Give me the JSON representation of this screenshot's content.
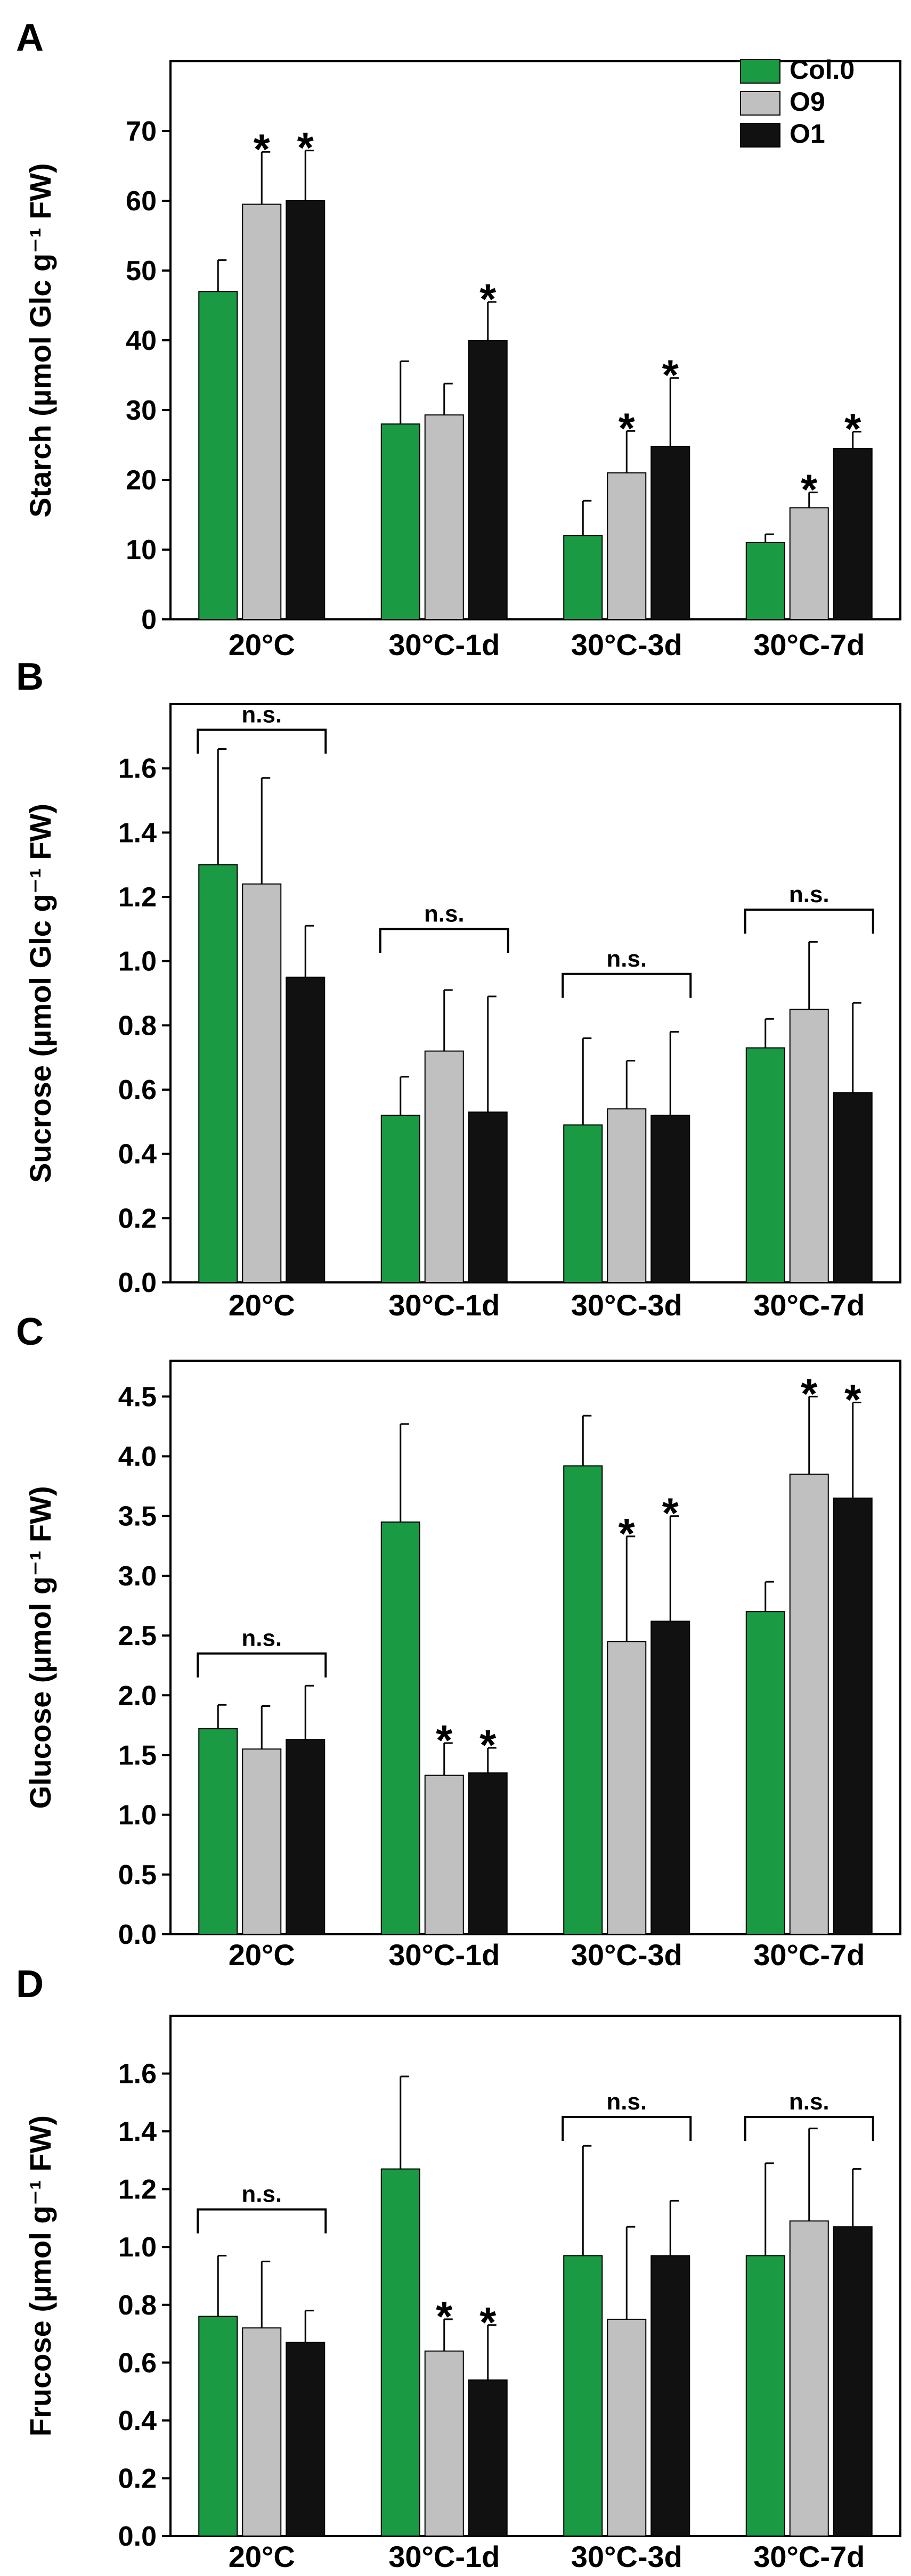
{
  "colors": {
    "Col.0": "#1a9a43",
    "O9": "#c0c0c0",
    "O1": "#111111"
  },
  "legend": [
    "Col.0",
    "O9",
    "O1"
  ],
  "chart_data": [
    {
      "type": "bar",
      "panel": "A",
      "ylabel": "Starch (µmol Glc g⁻¹ FW)",
      "categories": [
        "20°C",
        "30°C-1d",
        "30°C-3d",
        "30°C-7d"
      ],
      "ylim": [
        0,
        80
      ],
      "yticks": [
        0,
        10,
        20,
        30,
        40,
        50,
        60,
        70
      ],
      "yticklabels": [
        "0",
        "10",
        "20",
        "30",
        "40",
        "50",
        "60",
        "70"
      ],
      "series": [
        {
          "name": "Col.0",
          "values": [
            47,
            28,
            12,
            11
          ],
          "errors": [
            4.5,
            9,
            5,
            1.2
          ],
          "stars": [
            false,
            false,
            false,
            false
          ]
        },
        {
          "name": "O9",
          "values": [
            59.5,
            29.3,
            21,
            16
          ],
          "errors": [
            7.5,
            4.5,
            6,
            2.2
          ],
          "stars": [
            true,
            false,
            true,
            true
          ]
        },
        {
          "name": "O1",
          "values": [
            60,
            40,
            24.8,
            24.5
          ],
          "errors": [
            7.2,
            5.5,
            9.8,
            2.4
          ],
          "stars": [
            true,
            true,
            true,
            true
          ]
        }
      ],
      "ns_groups": [],
      "show_legend": true,
      "legend_position": "top-right"
    },
    {
      "type": "bar",
      "panel": "B",
      "ylabel": "Sucrose (µmol Glc g⁻¹ FW)",
      "categories": [
        "20°C",
        "30°C-1d",
        "30°C-3d",
        "30°C-7d"
      ],
      "ylim": [
        0,
        1.8
      ],
      "yticks": [
        0,
        0.2,
        0.4,
        0.6,
        0.8,
        1.0,
        1.2,
        1.4,
        1.6
      ],
      "yticklabels": [
        "0.0",
        "0.2",
        "0.4",
        "0.6",
        "0.8",
        "1.0",
        "1.2",
        "1.4",
        "1.6"
      ],
      "series": [
        {
          "name": "Col.0",
          "values": [
            1.3,
            0.52,
            0.49,
            0.73
          ],
          "errors": [
            0.36,
            0.12,
            0.27,
            0.09
          ],
          "stars": [
            false,
            false,
            false,
            false
          ]
        },
        {
          "name": "O9",
          "values": [
            1.24,
            0.72,
            0.54,
            0.85
          ],
          "errors": [
            0.33,
            0.19,
            0.15,
            0.21
          ],
          "stars": [
            false,
            false,
            false,
            false
          ]
        },
        {
          "name": "O1",
          "values": [
            0.95,
            0.53,
            0.52,
            0.59
          ],
          "errors": [
            0.16,
            0.36,
            0.26,
            0.28
          ],
          "stars": [
            false,
            false,
            false,
            false
          ]
        }
      ],
      "ns_groups": [
        0,
        1,
        2,
        3
      ],
      "ns_heights": [
        1.72,
        1.1,
        0.96,
        1.16
      ],
      "ns_label": "n.s.",
      "show_legend": false
    },
    {
      "type": "bar",
      "panel": "C",
      "ylabel": "Glucose (µmol g⁻¹ FW)",
      "categories": [
        "20°C",
        "30°C-1d",
        "30°C-3d",
        "30°C-7d"
      ],
      "ylim": [
        0,
        4.8
      ],
      "yticks": [
        0,
        0.5,
        1.0,
        1.5,
        2.0,
        2.5,
        3.0,
        3.5,
        4.0,
        4.5
      ],
      "yticklabels": [
        "0.0",
        "0.5",
        "1.0",
        "1.5",
        "2.0",
        "2.5",
        "3.0",
        "3.5",
        "4.0",
        "4.5"
      ],
      "series": [
        {
          "name": "Col.0",
          "values": [
            1.72,
            3.45,
            3.92,
            2.7
          ],
          "errors": [
            0.2,
            0.82,
            0.42,
            0.25
          ],
          "stars": [
            false,
            false,
            false,
            false
          ]
        },
        {
          "name": "O9",
          "values": [
            1.55,
            1.33,
            2.45,
            3.85
          ],
          "errors": [
            0.36,
            0.27,
            0.88,
            0.65
          ],
          "stars": [
            false,
            true,
            true,
            true
          ]
        },
        {
          "name": "O1",
          "values": [
            1.63,
            1.35,
            2.62,
            3.65
          ],
          "errors": [
            0.45,
            0.21,
            0.88,
            0.8
          ],
          "stars": [
            false,
            true,
            true,
            true
          ]
        }
      ],
      "ns_groups": [
        0
      ],
      "ns_heights": [
        2.35
      ],
      "ns_label": "n.s.",
      "show_legend": false
    },
    {
      "type": "bar",
      "panel": "D",
      "ylabel": "Frucose (µmol g⁻¹ FW)",
      "categories": [
        "20°C",
        "30°C-1d",
        "30°C-3d",
        "30°C-7d"
      ],
      "ylim": [
        0,
        1.8
      ],
      "yticks": [
        0,
        0.2,
        0.4,
        0.6,
        0.8,
        1.0,
        1.2,
        1.4,
        1.6
      ],
      "yticklabels": [
        "0.0",
        "0.2",
        "0.4",
        "0.6",
        "0.8",
        "1.0",
        "1.2",
        "1.4",
        "1.6"
      ],
      "series": [
        {
          "name": "Col.0",
          "values": [
            0.76,
            1.27,
            0.97,
            0.97
          ],
          "errors": [
            0.21,
            0.32,
            0.38,
            0.32
          ],
          "stars": [
            false,
            false,
            false,
            false
          ]
        },
        {
          "name": "O9",
          "values": [
            0.72,
            0.64,
            0.75,
            1.09
          ],
          "errors": [
            0.23,
            0.11,
            0.32,
            0.32
          ],
          "stars": [
            false,
            true,
            false,
            false
          ]
        },
        {
          "name": "O1",
          "values": [
            0.67,
            0.54,
            0.97,
            1.07
          ],
          "errors": [
            0.11,
            0.19,
            0.19,
            0.2
          ],
          "stars": [
            false,
            true,
            false,
            false
          ]
        }
      ],
      "ns_groups": [
        0,
        2,
        3
      ],
      "ns_heights": [
        1.13,
        1.45,
        1.45
      ],
      "ns_label": "n.s.",
      "show_legend": false
    }
  ]
}
